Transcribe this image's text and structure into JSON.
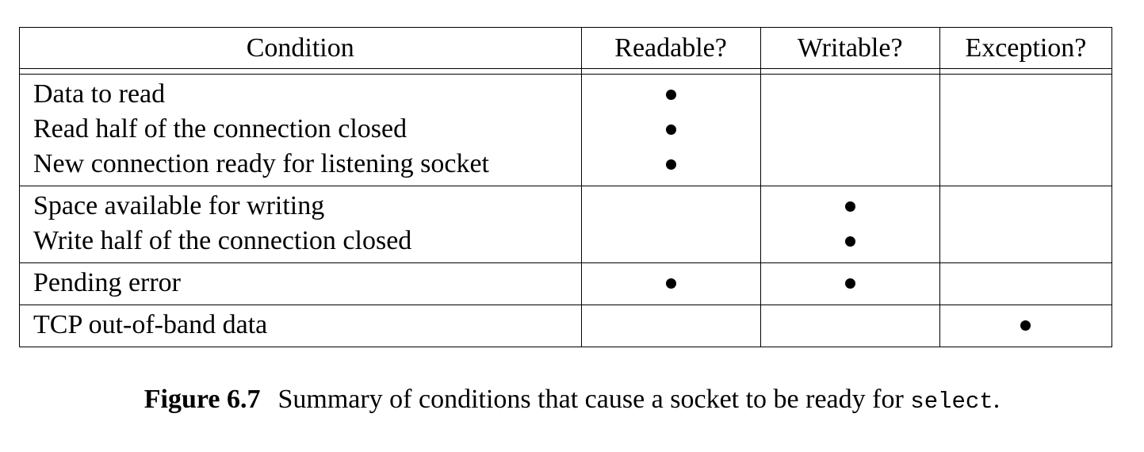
{
  "table": {
    "headers": [
      "Condition",
      "Readable?",
      "Writable?",
      "Exception?"
    ],
    "groups": [
      {
        "conditions": [
          "Data to read",
          "Read half of the connection closed",
          "New connection ready for listening socket"
        ],
        "readable": [
          true,
          true,
          true
        ],
        "writable": [
          false,
          false,
          false
        ],
        "exception": [
          false,
          false,
          false
        ]
      },
      {
        "conditions": [
          "Space available for writing",
          "Write half of the connection closed"
        ],
        "readable": [
          false,
          false
        ],
        "writable": [
          true,
          true
        ],
        "exception": [
          false,
          false
        ]
      },
      {
        "conditions": [
          "Pending error"
        ],
        "readable": [
          true
        ],
        "writable": [
          true
        ],
        "exception": [
          false
        ]
      },
      {
        "conditions": [
          "TCP out-of-band data"
        ],
        "readable": [
          false
        ],
        "writable": [
          false
        ],
        "exception": [
          true
        ]
      }
    ]
  },
  "caption": {
    "figure_number": "Figure 6.7",
    "text": "Summary of conditions that cause a socket to be ready for ",
    "code": "select",
    "end": "."
  }
}
